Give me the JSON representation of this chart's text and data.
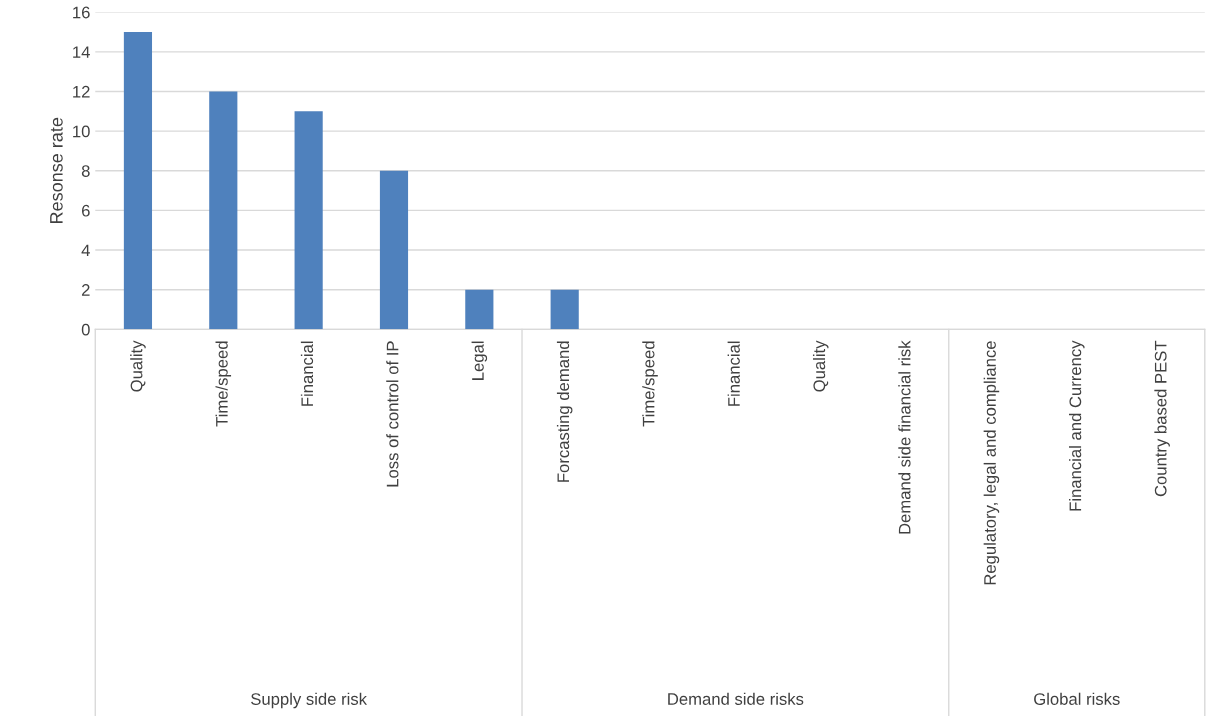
{
  "chart_data": {
    "type": "bar",
    "ylabel": "Resonse rate",
    "categories": [
      "Quality",
      "Time/speed",
      "Financial",
      "Loss of control of IP",
      "Legal",
      "Forcasting demand",
      "Time/speed",
      "Financial",
      "Quality",
      "Demand side financial risk",
      "Regulatory, legal and compliance",
      "Financial and Currency",
      "Country based PEST"
    ],
    "values": [
      15,
      12,
      11,
      8,
      2,
      2,
      0,
      0,
      0,
      0,
      0,
      0,
      0
    ],
    "color": "#4f81bd",
    "ylim": [
      0,
      16
    ],
    "yticks": [
      0,
      2,
      4,
      6,
      8,
      10,
      12,
      14,
      16
    ],
    "grid": "y",
    "annotations": [
      "Supply side risk",
      "Demand side risks",
      "Global risks"
    ]
  }
}
